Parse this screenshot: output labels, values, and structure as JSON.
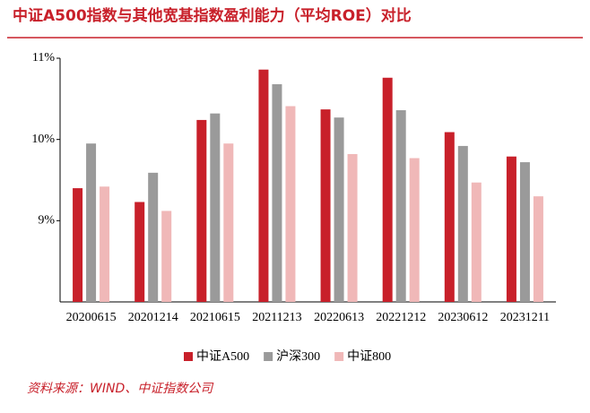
{
  "chart_data": {
    "type": "bar",
    "title": "中证A500指数与其他宽基指数盈利能力（平均ROE）对比",
    "source": "资料来源：WIND、中证指数公司",
    "categories": [
      "20200615",
      "20201214",
      "20210615",
      "20211213",
      "20220613",
      "20221212",
      "20230612",
      "20231211"
    ],
    "series": [
      {
        "name": "中证A500",
        "color": "#c8202a",
        "values": [
          9.4,
          9.23,
          10.24,
          10.86,
          10.37,
          10.76,
          10.09,
          9.79
        ]
      },
      {
        "name": "沪深300",
        "color": "#9a9a9a",
        "values": [
          9.95,
          9.59,
          10.32,
          10.68,
          10.27,
          10.36,
          9.92,
          9.72
        ]
      },
      {
        "name": "中证800",
        "color": "#f0b8b8",
        "values": [
          9.42,
          9.12,
          9.95,
          10.41,
          9.82,
          9.77,
          9.47,
          9.3
        ]
      }
    ],
    "ylim": [
      8,
      11
    ],
    "yticks": [
      {
        "value": 9,
        "label": "9%"
      },
      {
        "value": 10,
        "label": "10%"
      },
      {
        "value": 11,
        "label": "11%"
      }
    ]
  }
}
